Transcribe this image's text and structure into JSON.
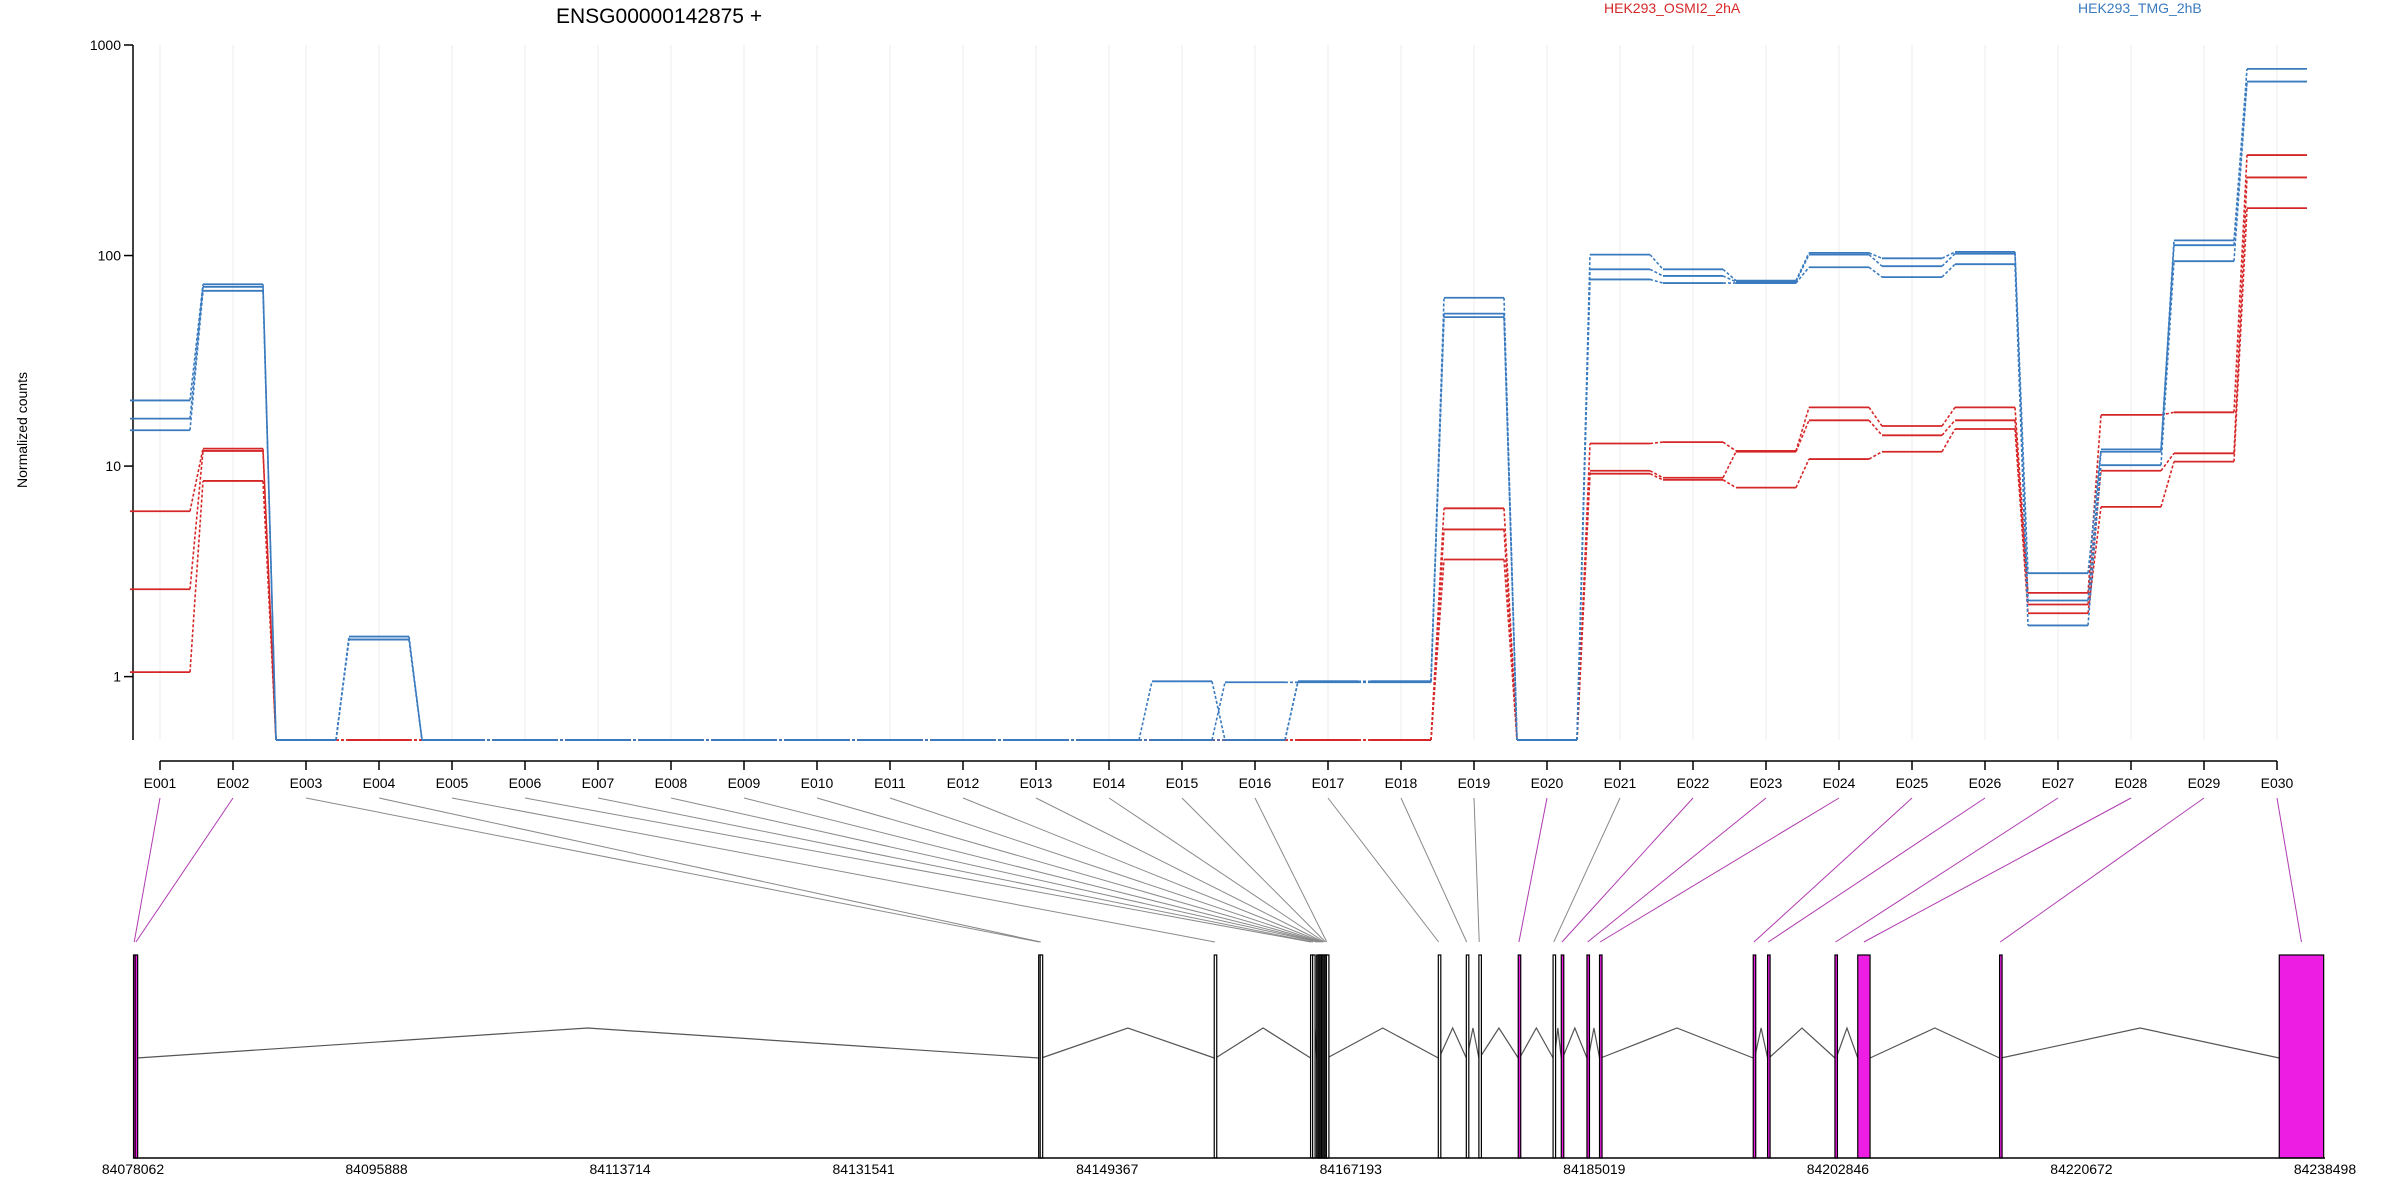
{
  "chart_data": {
    "type": "line",
    "title": "ENSG00000142875 +",
    "ylabel": "Normalized counts",
    "xlabel": "",
    "yscale": "log",
    "ylim": [
      0.5,
      1000
    ],
    "y_ticks": [
      "1",
      "10",
      "100",
      "1000"
    ],
    "y_tick_values": [
      1,
      10,
      100,
      1000
    ],
    "grid": "vertical",
    "legend_placement": "top-right",
    "categories": [
      "E001",
      "E002",
      "E003",
      "E004",
      "E005",
      "E006",
      "E007",
      "E008",
      "E009",
      "E010",
      "E011",
      "E012",
      "E013",
      "E014",
      "E015",
      "E016",
      "E017",
      "E018",
      "E019",
      "E020",
      "E021",
      "E022",
      "E023",
      "E024",
      "E025",
      "E026",
      "E027",
      "E028",
      "E029",
      "E030"
    ],
    "series": [
      {
        "name": "HEK293_OSMI2_2hA",
        "color": "#d62728",
        "replicates": [
          [
            6.1,
            12.1,
            0.5,
            0.5,
            0.5,
            0.5,
            0.5,
            0.5,
            0.5,
            0.5,
            0.5,
            0.5,
            0.5,
            0.5,
            0.5,
            0.5,
            0.5,
            0.5,
            6.3,
            0.5,
            12.8,
            13.0,
            11.8,
            19.0,
            15.5,
            19.0,
            2.5,
            17.5,
            18.0,
            300
          ],
          [
            2.6,
            11.8,
            0.5,
            0.5,
            0.5,
            0.5,
            0.5,
            0.5,
            0.5,
            0.5,
            0.5,
            0.5,
            0.5,
            0.5,
            0.5,
            0.5,
            0.5,
            0.5,
            5.0,
            0.5,
            9.5,
            8.8,
            11.7,
            16.5,
            14.0,
            16.5,
            2.2,
            9.5,
            11.5,
            235
          ],
          [
            1.05,
            8.5,
            0.5,
            0.5,
            0.5,
            0.5,
            0.5,
            0.5,
            0.5,
            0.5,
            0.5,
            0.5,
            0.5,
            0.5,
            0.5,
            0.5,
            0.5,
            0.5,
            3.6,
            0.5,
            9.2,
            8.6,
            7.9,
            10.8,
            11.7,
            15.0,
            2.0,
            6.4,
            10.5,
            168
          ]
        ]
      },
      {
        "name": "HEK293_TMG_2hB",
        "color": "#3a7bbf",
        "replicates": [
          [
            20.5,
            73,
            0.5,
            1.55,
            0.5,
            0.5,
            0.5,
            0.5,
            0.5,
            0.5,
            0.5,
            0.5,
            0.5,
            0.5,
            0.95,
            0.5,
            0.95,
            0.95,
            63,
            0.5,
            101,
            86,
            76,
            103,
            97,
            104,
            3.1,
            12.0,
            118,
            770
          ],
          [
            16.8,
            71,
            0.5,
            1.5,
            0.5,
            0.5,
            0.5,
            0.5,
            0.5,
            0.5,
            0.5,
            0.5,
            0.5,
            0.5,
            0.5,
            0.94,
            0.94,
            0.94,
            53,
            0.5,
            86,
            80,
            75,
            101,
            89,
            102,
            2.3,
            11.7,
            112,
            670
          ],
          [
            14.8,
            68,
            0.5,
            1.5,
            0.5,
            0.5,
            0.5,
            0.5,
            0.5,
            0.5,
            0.5,
            0.5,
            0.5,
            0.5,
            0.5,
            0.5,
            0.95,
            0.95,
            51,
            0.5,
            77,
            74,
            74,
            88,
            79,
            91,
            1.75,
            10.1,
            94,
            670
          ]
        ]
      }
    ],
    "gene_model": {
      "genomic_range": [
        84078062,
        84238498
      ],
      "axis_ticks": [
        "84078062",
        "84095888",
        "84113714",
        "84131541",
        "84149367",
        "84167193",
        "84185019",
        "84202846",
        "84220672",
        "84238498"
      ],
      "axis_tick_values": [
        84078062,
        84095888,
        84113714,
        84131541,
        84149367,
        84167193,
        84185019,
        84202846,
        84220672,
        84238498
      ],
      "exons": [
        {
          "id": "E001",
          "start": 84078100,
          "end": 84078200,
          "significant": true
        },
        {
          "id": "E002",
          "start": 84078220,
          "end": 84078330,
          "significant": true
        },
        {
          "id": "E003",
          "start": 84144350,
          "end": 84144420,
          "significant": false
        },
        {
          "id": "E004",
          "start": 84144460,
          "end": 84144550,
          "significant": false
        },
        {
          "id": "E005",
          "start": 84157200,
          "end": 84157300,
          "significant": false
        },
        {
          "id": "E006",
          "start": 84164250,
          "end": 84164300,
          "significant": false
        },
        {
          "id": "E007",
          "start": 84164400,
          "end": 84164450,
          "significant": false
        },
        {
          "id": "E008",
          "start": 84164700,
          "end": 84164750,
          "significant": false
        },
        {
          "id": "E009",
          "start": 84164790,
          "end": 84164840,
          "significant": false
        },
        {
          "id": "E010",
          "start": 84164880,
          "end": 84164930,
          "significant": false
        },
        {
          "id": "E011",
          "start": 84164960,
          "end": 84165010,
          "significant": false
        },
        {
          "id": "E012",
          "start": 84165050,
          "end": 84165100,
          "significant": false
        },
        {
          "id": "E013",
          "start": 84165140,
          "end": 84165190,
          "significant": false
        },
        {
          "id": "E014",
          "start": 84165230,
          "end": 84165280,
          "significant": false
        },
        {
          "id": "E015",
          "start": 84165320,
          "end": 84165370,
          "significant": false
        },
        {
          "id": "E016",
          "start": 84165410,
          "end": 84165460,
          "significant": false
        },
        {
          "id": "E017",
          "start": 84173600,
          "end": 84173650,
          "significant": false
        },
        {
          "id": "E018",
          "start": 84175650,
          "end": 84175700,
          "significant": false
        },
        {
          "id": "E019",
          "start": 84176570,
          "end": 84176620,
          "significant": false
        },
        {
          "id": "E020",
          "start": 84179450,
          "end": 84179550,
          "significant": true
        },
        {
          "id": "E021",
          "start": 84182000,
          "end": 84182100,
          "significant": false
        },
        {
          "id": "E022",
          "start": 84182600,
          "end": 84182700,
          "significant": true
        },
        {
          "id": "E023",
          "start": 84184480,
          "end": 84184580,
          "significant": true
        },
        {
          "id": "E024",
          "start": 84185400,
          "end": 84185480,
          "significant": true
        },
        {
          "id": "E025",
          "start": 84196650,
          "end": 84196750,
          "significant": true
        },
        {
          "id": "E026",
          "start": 84197700,
          "end": 84197800,
          "significant": true
        },
        {
          "id": "E027",
          "start": 84202630,
          "end": 84202720,
          "significant": true
        },
        {
          "id": "E028",
          "start": 84204300,
          "end": 84205200,
          "significant": true
        },
        {
          "id": "E029",
          "start": 84214680,
          "end": 84214780,
          "significant": true
        },
        {
          "id": "E030",
          "start": 84235150,
          "end": 84238400,
          "significant": true
        }
      ],
      "colors": {
        "significant": "#ee1de4",
        "normal": "#ffffff",
        "link_significant": "#b03bb0",
        "link_normal": "#8a8a8a"
      }
    }
  }
}
